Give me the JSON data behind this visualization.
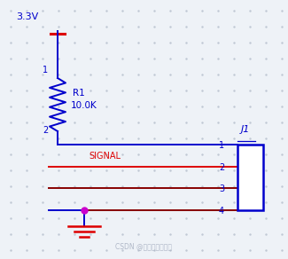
{
  "bg_color": "#eef2f7",
  "dot_color": "#c0c8d4",
  "wire_blue": "#0000cc",
  "wire_red": "#dd0000",
  "wire_dark_red": "#880000",
  "resistor_color": "#0000cc",
  "connector_color": "#0000cc",
  "magenta_dot": "#cc00cc",
  "text_color_blue": "#0000cc",
  "text_color_red": "#dd0000",
  "watermark_color": "#b0b8c8",
  "vcc_label": "3.3V",
  "r_label": "R1",
  "r_value": "10.0K",
  "signal_label": "SIGNAL",
  "j_label": "J1",
  "watermark": "CSDN @硬码农工电子哥"
}
